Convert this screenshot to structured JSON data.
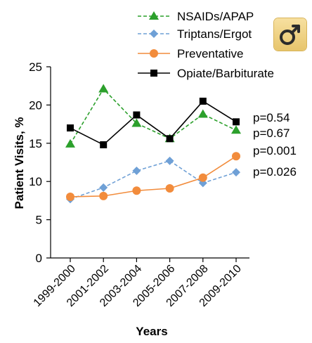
{
  "chart_data": {
    "type": "line",
    "categories": [
      "1999-2000",
      "2001-2002",
      "2003-2004",
      "2005-2006",
      "2007-2008",
      "2009-2010"
    ],
    "xlabel": "Years",
    "ylabel": "Patient Visits, %",
    "ylim": [
      0,
      25
    ],
    "yticks": [
      0,
      5,
      10,
      15,
      20,
      25
    ],
    "grid": false,
    "legend_position": "top-right",
    "series": [
      {
        "name": "NSAIDs/APAP",
        "values": [
          14.9,
          22.1,
          17.6,
          15.6,
          18.8,
          16.7
        ],
        "color": "#2ca02c",
        "line": "dashed",
        "marker": "triangle",
        "pvalue": "p=0.54"
      },
      {
        "name": "Triptans/Ergot",
        "values": [
          7.7,
          9.2,
          11.4,
          12.7,
          9.8,
          11.2
        ],
        "color": "#6fa0d6",
        "line": "dashed",
        "marker": "diamond",
        "pvalue": "p=0.026"
      },
      {
        "name": "Preventative",
        "values": [
          8.0,
          8.1,
          8.8,
          9.1,
          10.5,
          13.3
        ],
        "color": "#f28c3c",
        "line": "solid",
        "marker": "circle",
        "pvalue": "p=0.001"
      },
      {
        "name": "Opiate/Barbiturate",
        "values": [
          17.0,
          14.8,
          18.7,
          15.6,
          20.5,
          17.8
        ],
        "color": "#000000",
        "line": "solid",
        "marker": "square",
        "pvalue": "p=0.67"
      }
    ]
  },
  "icons": {
    "corner": "male-symbol-icon"
  }
}
